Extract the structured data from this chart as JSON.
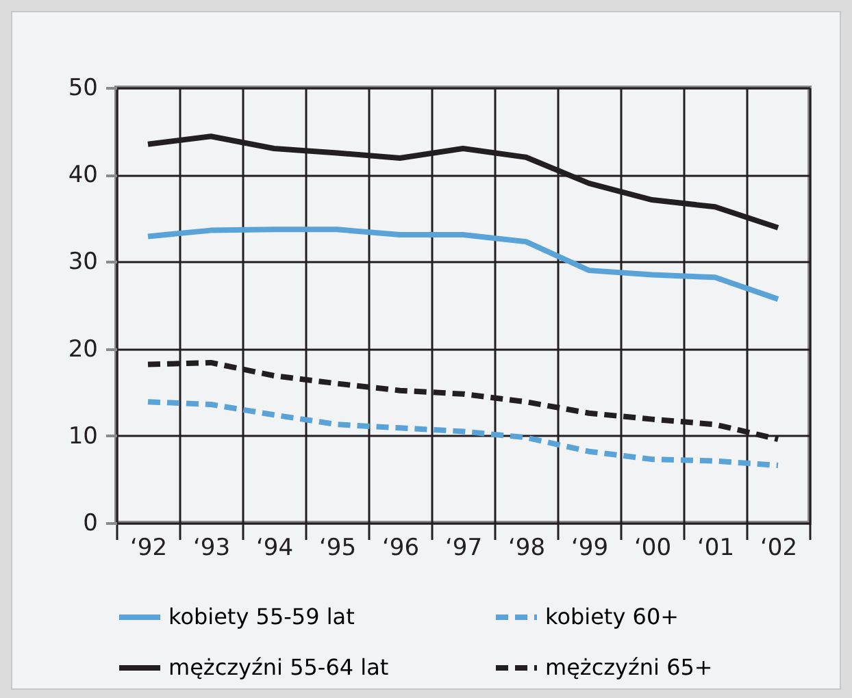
{
  "chart_data": {
    "type": "line",
    "categories": [
      "‘92",
      "‘93",
      "‘94",
      "‘95",
      "‘96",
      "‘97",
      "‘98",
      "‘99",
      "‘00",
      "‘01",
      "‘02"
    ],
    "ylim": [
      0,
      50
    ],
    "yticks": [
      0,
      10,
      20,
      30,
      40,
      50
    ],
    "grid": true,
    "legend": "bottom",
    "marker": "none",
    "series": [
      {
        "name": "kobiety 55-59 lat",
        "color": "#5aa3d8",
        "line_style": "solid",
        "values": [
          32.9,
          33.6,
          33.7,
          33.7,
          33.1,
          33.1,
          32.3,
          29.0,
          28.5,
          28.2,
          25.7
        ]
      },
      {
        "name": "kobiety 60+",
        "color": "#5aa3d8",
        "line_style": "dashed",
        "values": [
          13.9,
          13.6,
          12.4,
          11.3,
          10.9,
          10.5,
          9.8,
          8.2,
          7.3,
          7.1,
          6.6
        ]
      },
      {
        "name": "mężczyźni 55-64 lat",
        "color": "#231f20",
        "line_style": "solid",
        "values": [
          43.5,
          44.4,
          43.0,
          42.5,
          41.9,
          43.0,
          42.0,
          39.0,
          37.1,
          36.3,
          33.9
        ]
      },
      {
        "name": "mężczyźni 65+",
        "color": "#231f20",
        "line_style": "dashed",
        "values": [
          18.2,
          18.4,
          16.9,
          16.0,
          15.2,
          14.8,
          13.9,
          12.6,
          11.9,
          11.3,
          9.6
        ]
      }
    ]
  }
}
